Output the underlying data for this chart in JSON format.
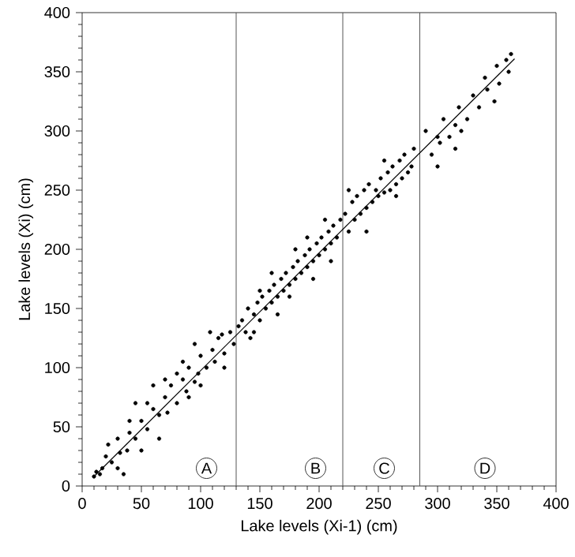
{
  "chart_data": {
    "type": "scatter",
    "xlabel": "Lake levels (Xi-1)  (cm)",
    "ylabel": "Lake levels (Xi) (cm)",
    "xlim": [
      0,
      400
    ],
    "ylim": [
      0,
      400
    ],
    "xticks": [
      0,
      50,
      100,
      150,
      200,
      250,
      300,
      350,
      400
    ],
    "yticks": [
      0,
      50,
      100,
      150,
      200,
      250,
      300,
      350,
      400
    ],
    "grid": false,
    "series": [
      {
        "color": "#000000",
        "marker": "circle",
        "x": [
          10,
          12,
          15,
          20,
          17,
          25,
          30,
          35,
          32,
          38,
          40,
          45,
          50,
          55,
          60,
          65,
          70,
          72,
          75,
          80,
          85,
          88,
          90,
          95,
          100,
          98,
          105,
          110,
          112,
          115,
          120,
          118,
          125,
          128,
          65,
          50,
          45,
          60,
          80,
          90,
          100,
          108,
          85,
          70,
          55,
          40,
          30,
          22,
          95,
          120,
          132,
          135,
          138,
          140,
          142,
          145,
          148,
          150,
          152,
          155,
          158,
          160,
          162,
          165,
          168,
          170,
          172,
          175,
          178,
          180,
          182,
          185,
          188,
          190,
          192,
          195,
          198,
          200,
          202,
          205,
          208,
          210,
          212,
          215,
          218,
          150,
          165,
          180,
          195,
          205,
          145,
          160,
          175,
          190,
          210,
          222,
          225,
          228,
          230,
          232,
          235,
          238,
          240,
          242,
          245,
          248,
          250,
          252,
          255,
          258,
          260,
          262,
          265,
          268,
          270,
          272,
          275,
          278,
          280,
          225,
          240,
          255,
          265,
          290,
          295,
          300,
          302,
          305,
          310,
          315,
          318,
          320,
          325,
          330,
          335,
          340,
          342,
          348,
          350,
          352,
          358,
          360,
          362,
          300,
          315
        ],
        "values": [
          8,
          12,
          10,
          25,
          15,
          20,
          15,
          10,
          28,
          30,
          45,
          40,
          55,
          48,
          65,
          60,
          75,
          62,
          85,
          70,
          90,
          80,
          100,
          88,
          110,
          95,
          100,
          115,
          105,
          125,
          112,
          128,
          130,
          120,
          40,
          30,
          70,
          85,
          95,
          75,
          85,
          130,
          105,
          90,
          70,
          55,
          40,
          35,
          120,
          100,
          135,
          140,
          130,
          150,
          125,
          145,
          155,
          140,
          160,
          150,
          165,
          155,
          170,
          160,
          175,
          165,
          180,
          170,
          185,
          175,
          190,
          180,
          195,
          185,
          200,
          190,
          205,
          195,
          210,
          200,
          215,
          205,
          220,
          210,
          225,
          165,
          145,
          200,
          175,
          225,
          130,
          180,
          160,
          210,
          190,
          230,
          215,
          240,
          225,
          245,
          230,
          250,
          235,
          255,
          240,
          250,
          245,
          260,
          248,
          265,
          250,
          270,
          255,
          275,
          260,
          280,
          265,
          270,
          285,
          250,
          215,
          275,
          245,
          300,
          280,
          295,
          290,
          310,
          295,
          305,
          320,
          300,
          310,
          330,
          320,
          345,
          335,
          325,
          355,
          340,
          360,
          350,
          365,
          270,
          285
        ]
      },
      {
        "type": "line",
        "color": "#000000",
        "x": [
          10,
          365
        ],
        "values": [
          8,
          361
        ]
      }
    ],
    "ref_lines": [
      {
        "axis": "x",
        "value": 130,
        "color": "#555555"
      },
      {
        "axis": "x",
        "value": 220,
        "color": "#555555"
      },
      {
        "axis": "x",
        "value": 285,
        "color": "#555555"
      }
    ],
    "annotations": [
      {
        "text": "A",
        "x": 105,
        "y": 15
      },
      {
        "text": "B",
        "x": 197,
        "y": 15
      },
      {
        "text": "C",
        "x": 255,
        "y": 15
      },
      {
        "text": "D",
        "x": 340,
        "y": 15
      }
    ]
  }
}
